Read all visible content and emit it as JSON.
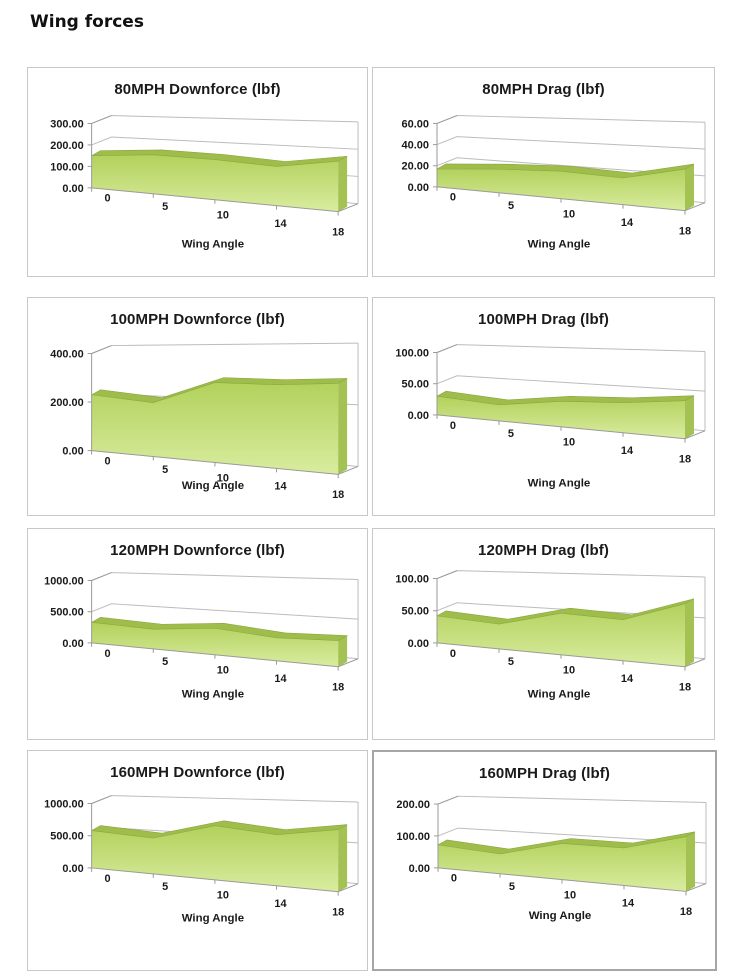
{
  "page": {
    "title": "Wing forces"
  },
  "colors": {
    "grid": "#bcbcbc",
    "axis": "#9a9a9a",
    "area_top": "#b2d15c",
    "area_bottom": "#d9ec9f",
    "area_ribbon": "#9fbd4b",
    "area_edge": "#8aa73c",
    "area_side": "#a4c253",
    "text": "#1a1a1a",
    "panel_border": "#c8c8c8",
    "panel_border_selected": "#a6a6a6"
  },
  "chart_data": [
    {
      "type": "area",
      "title": "80MPH Downforce (lbf)",
      "xlabel": "Wing Angle",
      "categories": [
        "0",
        "5",
        "10",
        "14",
        "18"
      ],
      "values": [
        150,
        170,
        165,
        152,
        185
      ],
      "ylim": [
        0,
        300
      ],
      "ytick_values": [
        0,
        100,
        200,
        300
      ],
      "ytick_labels": [
        "0.00",
        "100.00",
        "200.00",
        "300.00"
      ],
      "grid": true,
      "legend": "none",
      "style": "3d-area-green"
    },
    {
      "type": "area",
      "title": "80MPH Drag (lbf)",
      "xlabel": "Wing Angle",
      "categories": [
        "0",
        "5",
        "10",
        "14",
        "18"
      ],
      "values": [
        17,
        21,
        23,
        21,
        31
      ],
      "ylim": [
        0,
        60
      ],
      "ytick_values": [
        0,
        20,
        40,
        60
      ],
      "ytick_labels": [
        "0.00",
        "20.00",
        "40.00",
        "60.00"
      ],
      "grid": true,
      "legend": "none",
      "style": "3d-area-green"
    },
    {
      "type": "area",
      "title": "100MPH Downforce (lbf)",
      "xlabel": "Wing Angle",
      "categories": [
        "0",
        "5",
        "10",
        "14",
        "18"
      ],
      "values": [
        230,
        208,
        290,
        287,
        295
      ],
      "ylim": [
        0,
        400
      ],
      "ytick_values": [
        0,
        200,
        400
      ],
      "ytick_labels": [
        "0.00",
        "200.00",
        "400.00"
      ],
      "grid": true,
      "legend": "none",
      "style": "3d-area-green"
    },
    {
      "type": "area",
      "title": "100MPH Drag (lbf)",
      "xlabel": "Wing Angle",
      "categories": [
        "0",
        "5",
        "10",
        "14",
        "18"
      ],
      "values": [
        30,
        24,
        36,
        40,
        48
      ],
      "ylim": [
        0,
        100
      ],
      "ytick_values": [
        0,
        50,
        100
      ],
      "ytick_labels": [
        "0.00",
        "50.00",
        "100.00"
      ],
      "grid": true,
      "legend": "none",
      "style": "3d-area-green"
    },
    {
      "type": "area",
      "title": "120MPH Downforce (lbf)",
      "xlabel": "Wing Angle",
      "categories": [
        "0",
        "5",
        "10",
        "14",
        "18"
      ],
      "values": [
        330,
        295,
        375,
        305,
        330
      ],
      "ylim": [
        0,
        1000
      ],
      "ytick_values": [
        0,
        500,
        1000
      ],
      "ytick_labels": [
        "0.00",
        "500.00",
        "1000.00"
      ],
      "grid": true,
      "legend": "none",
      "style": "3d-area-green"
    },
    {
      "type": "area",
      "title": "120MPH Drag (lbf)",
      "xlabel": "Wing Angle",
      "categories": [
        "0",
        "5",
        "10",
        "14",
        "18"
      ],
      "values": [
        42,
        36,
        57,
        53,
        77
      ],
      "ylim": [
        0,
        100
      ],
      "ytick_values": [
        0,
        50,
        100
      ],
      "ytick_labels": [
        "0.00",
        "50.00",
        "100.00"
      ],
      "grid": true,
      "legend": "none",
      "style": "3d-area-green"
    },
    {
      "type": "area",
      "title": "160MPH Downforce (lbf)",
      "xlabel": "Wing Angle",
      "categories": [
        "0",
        "5",
        "10",
        "14",
        "18"
      ],
      "values": [
        580,
        520,
        740,
        660,
        760
      ],
      "ylim": [
        0,
        1000
      ],
      "ytick_values": [
        0,
        500,
        1000
      ],
      "ytick_labels": [
        "0.00",
        "500.00",
        "1000.00"
      ],
      "grid": true,
      "legend": "none",
      "style": "3d-area-green"
    },
    {
      "type": "area",
      "title": "160MPH Drag (lbf)",
      "xlabel": "Wing Angle",
      "categories": [
        "0",
        "5",
        "10",
        "14",
        "18"
      ],
      "values": [
        72,
        58,
        100,
        98,
        135
      ],
      "ylim": [
        0,
        200
      ],
      "ytick_values": [
        0,
        100,
        200
      ],
      "ytick_labels": [
        "0.00",
        "100.00",
        "200.00"
      ],
      "grid": true,
      "legend": "none",
      "style": "3d-area-green"
    }
  ]
}
